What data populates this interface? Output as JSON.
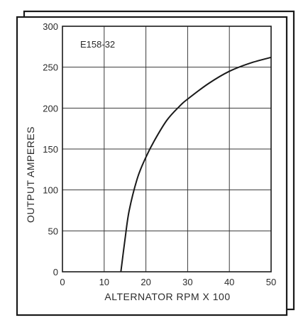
{
  "chart_data": {
    "type": "line",
    "title": "",
    "annotation": "E158-32",
    "xlabel": "ALTERNATOR RPM X 100",
    "ylabel": "OUTPUT AMPERES",
    "xlim": [
      0,
      50
    ],
    "ylim": [
      0,
      300
    ],
    "x_ticks": [
      "0",
      "10",
      "20",
      "30",
      "40",
      "50"
    ],
    "y_ticks": [
      "0",
      "50",
      "100",
      "150",
      "200",
      "250",
      "300"
    ],
    "grid": true,
    "legend": "none",
    "series": [
      {
        "color": "#1a1a1a",
        "points": [
          {
            "x": 14,
            "y": 0
          },
          {
            "x": 15,
            "y": 40
          },
          {
            "x": 16,
            "y": 75
          },
          {
            "x": 18,
            "y": 115
          },
          {
            "x": 20,
            "y": 140
          },
          {
            "x": 22,
            "y": 160
          },
          {
            "x": 25,
            "y": 185
          },
          {
            "x": 28,
            "y": 202
          },
          {
            "x": 30,
            "y": 211
          },
          {
            "x": 35,
            "y": 230
          },
          {
            "x": 40,
            "y": 245
          },
          {
            "x": 45,
            "y": 255
          },
          {
            "x": 50,
            "y": 262
          }
        ]
      }
    ]
  }
}
